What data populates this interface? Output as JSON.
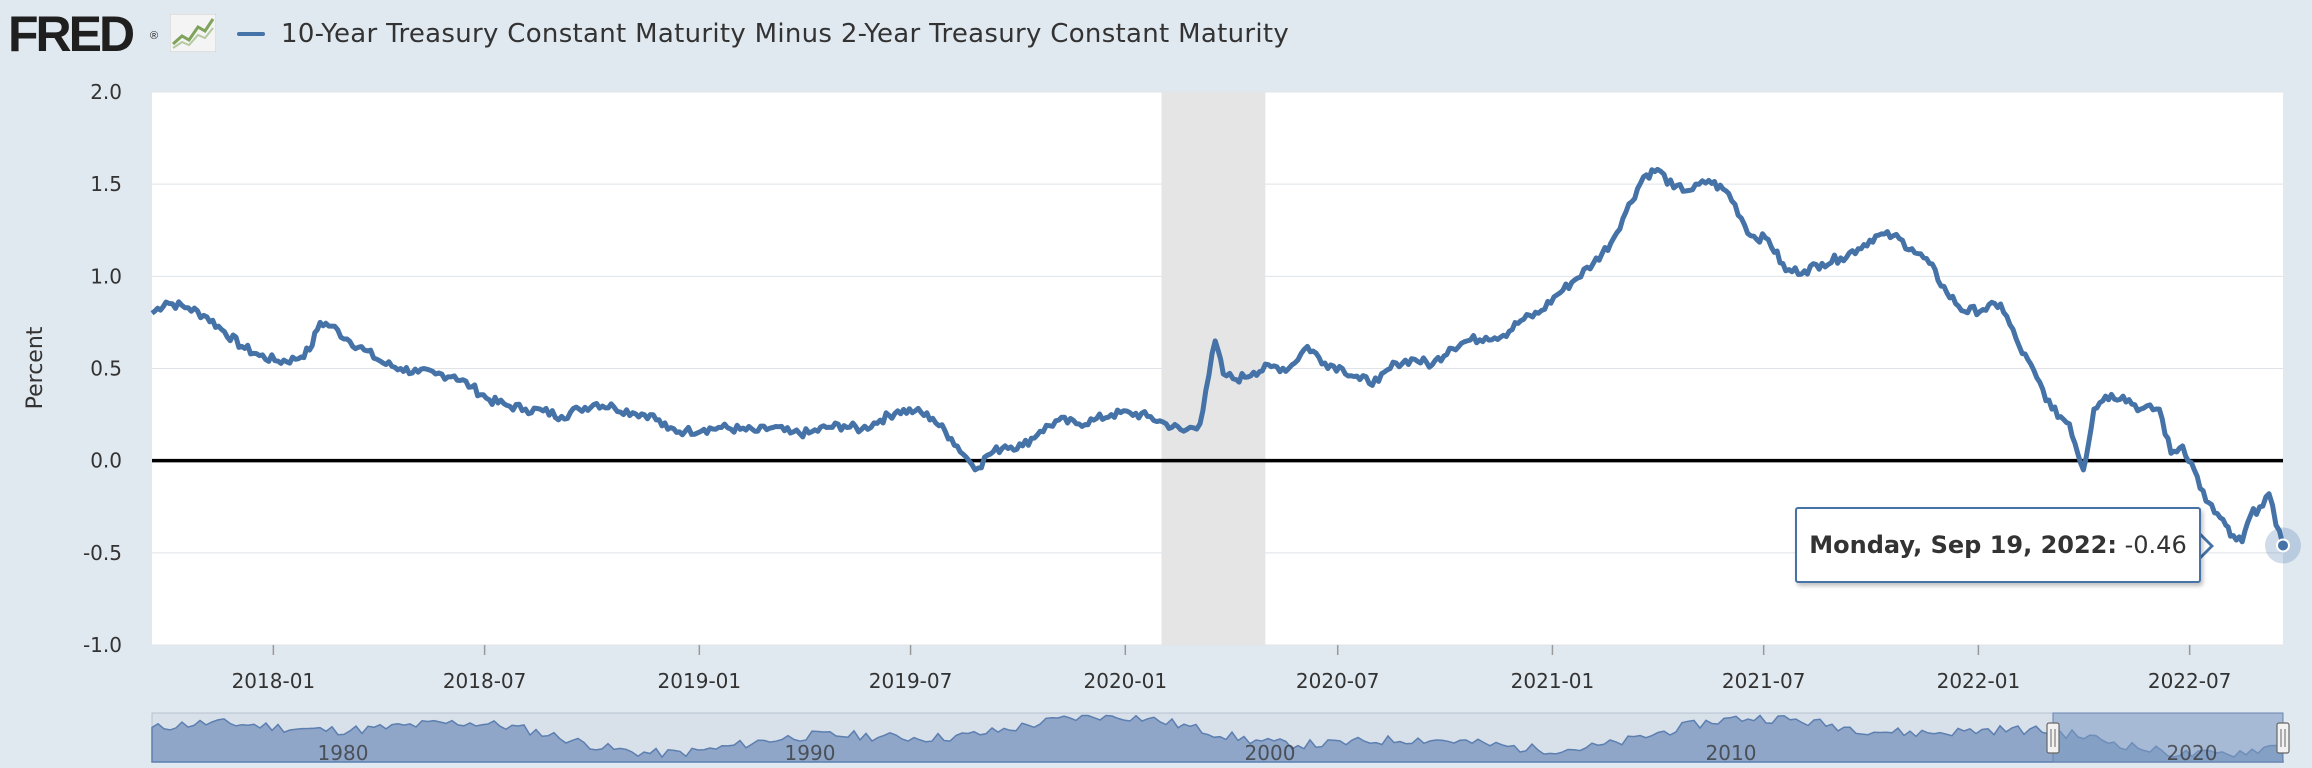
{
  "header": {
    "logo": "FRED",
    "logo_mark": "®",
    "series_title": "10-Year Treasury Constant Maturity Minus 2-Year Treasury Constant Maturity"
  },
  "tooltip": {
    "date": "Monday, Sep 19, 2022:",
    "value": "-0.46"
  },
  "navigator": {
    "year_labels": [
      "1980",
      "1990",
      "2000",
      "2010",
      "2020"
    ]
  },
  "colors": {
    "series": "#4572a7",
    "recession": "#e5e5e5",
    "background": "#e1e9f0",
    "zero_line": "#000000"
  },
  "chart_data": {
    "type": "line",
    "title": "",
    "ylabel": "Percent",
    "xlabel": "",
    "ylim": [
      -1.0,
      2.0
    ],
    "xlim": [
      "2017-09-19",
      "2022-09-19"
    ],
    "y_ticks": [
      "2.0",
      "1.5",
      "1.0",
      "0.5",
      "0.0",
      "-0.5",
      "-1.0"
    ],
    "x_ticks": [
      "2018-01",
      "2018-07",
      "2019-01",
      "2019-07",
      "2020-01",
      "2020-07",
      "2021-01",
      "2021-07",
      "2022-01",
      "2022-07"
    ],
    "grid": true,
    "legend": "top-left",
    "recession": {
      "start": "2020-02-01",
      "end": "2020-04-30"
    },
    "series": [
      {
        "name": "10-Year Treasury Constant Maturity Minus 2-Year Treasury Constant Maturity",
        "points": [
          [
            "2017-09-19",
            0.8
          ],
          [
            "2017-10-01",
            0.86
          ],
          [
            "2017-10-20",
            0.83
          ],
          [
            "2017-11-05",
            0.78
          ],
          [
            "2017-11-20",
            0.7
          ],
          [
            "2017-12-05",
            0.62
          ],
          [
            "2017-12-20",
            0.57
          ],
          [
            "2018-01-05",
            0.54
          ],
          [
            "2018-01-20",
            0.55
          ],
          [
            "2018-02-01",
            0.6
          ],
          [
            "2018-02-10",
            0.75
          ],
          [
            "2018-02-20",
            0.73
          ],
          [
            "2018-03-05",
            0.66
          ],
          [
            "2018-03-20",
            0.6
          ],
          [
            "2018-04-05",
            0.53
          ],
          [
            "2018-04-20",
            0.5
          ],
          [
            "2018-05-05",
            0.48
          ],
          [
            "2018-05-20",
            0.47
          ],
          [
            "2018-06-05",
            0.46
          ],
          [
            "2018-06-20",
            0.4
          ],
          [
            "2018-07-05",
            0.33
          ],
          [
            "2018-07-20",
            0.3
          ],
          [
            "2018-08-05",
            0.28
          ],
          [
            "2018-08-20",
            0.27
          ],
          [
            "2018-09-05",
            0.24
          ],
          [
            "2018-09-20",
            0.28
          ],
          [
            "2018-10-05",
            0.31
          ],
          [
            "2018-10-20",
            0.29
          ],
          [
            "2018-11-05",
            0.26
          ],
          [
            "2018-11-20",
            0.25
          ],
          [
            "2018-12-05",
            0.17
          ],
          [
            "2018-12-20",
            0.16
          ],
          [
            "2019-01-05",
            0.17
          ],
          [
            "2019-01-20",
            0.18
          ],
          [
            "2019-02-05",
            0.17
          ],
          [
            "2019-02-20",
            0.16
          ],
          [
            "2019-03-05",
            0.18
          ],
          [
            "2019-03-20",
            0.15
          ],
          [
            "2019-04-05",
            0.15
          ],
          [
            "2019-04-20",
            0.18
          ],
          [
            "2019-05-05",
            0.19
          ],
          [
            "2019-05-20",
            0.17
          ],
          [
            "2019-06-05",
            0.22
          ],
          [
            "2019-06-20",
            0.27
          ],
          [
            "2019-07-05",
            0.27
          ],
          [
            "2019-07-20",
            0.23
          ],
          [
            "2019-08-05",
            0.12
          ],
          [
            "2019-08-20",
            0.0
          ],
          [
            "2019-08-28",
            -0.04
          ],
          [
            "2019-09-05",
            0.03
          ],
          [
            "2019-09-20",
            0.08
          ],
          [
            "2019-10-05",
            0.08
          ],
          [
            "2019-10-20",
            0.16
          ],
          [
            "2019-11-05",
            0.22
          ],
          [
            "2019-11-20",
            0.2
          ],
          [
            "2019-12-05",
            0.22
          ],
          [
            "2019-12-20",
            0.25
          ],
          [
            "2020-01-05",
            0.26
          ],
          [
            "2020-01-20",
            0.24
          ],
          [
            "2020-02-05",
            0.2
          ],
          [
            "2020-02-20",
            0.16
          ],
          [
            "2020-03-05",
            0.2
          ],
          [
            "2020-03-10",
            0.38
          ],
          [
            "2020-03-18",
            0.65
          ],
          [
            "2020-03-25",
            0.47
          ],
          [
            "2020-04-05",
            0.44
          ],
          [
            "2020-04-20",
            0.48
          ],
          [
            "2020-05-05",
            0.51
          ],
          [
            "2020-05-20",
            0.5
          ],
          [
            "2020-06-05",
            0.62
          ],
          [
            "2020-06-20",
            0.53
          ],
          [
            "2020-07-05",
            0.5
          ],
          [
            "2020-07-20",
            0.44
          ],
          [
            "2020-08-05",
            0.43
          ],
          [
            "2020-08-20",
            0.53
          ],
          [
            "2020-09-05",
            0.55
          ],
          [
            "2020-09-20",
            0.52
          ],
          [
            "2020-10-05",
            0.61
          ],
          [
            "2020-10-20",
            0.65
          ],
          [
            "2020-11-05",
            0.67
          ],
          [
            "2020-11-20",
            0.68
          ],
          [
            "2020-12-05",
            0.76
          ],
          [
            "2020-12-20",
            0.8
          ],
          [
            "2021-01-05",
            0.9
          ],
          [
            "2021-01-20",
            0.98
          ],
          [
            "2021-02-05",
            1.07
          ],
          [
            "2021-02-20",
            1.18
          ],
          [
            "2021-03-05",
            1.35
          ],
          [
            "2021-03-20",
            1.54
          ],
          [
            "2021-04-01",
            1.58
          ],
          [
            "2021-04-15",
            1.48
          ],
          [
            "2021-05-01",
            1.47
          ],
          [
            "2021-05-15",
            1.52
          ],
          [
            "2021-06-01",
            1.45
          ],
          [
            "2021-06-20",
            1.22
          ],
          [
            "2021-07-05",
            1.2
          ],
          [
            "2021-07-20",
            1.03
          ],
          [
            "2021-08-05",
            1.03
          ],
          [
            "2021-08-20",
            1.07
          ],
          [
            "2021-09-05",
            1.1
          ],
          [
            "2021-09-20",
            1.15
          ],
          [
            "2021-10-05",
            1.22
          ],
          [
            "2021-10-20",
            1.22
          ],
          [
            "2021-11-05",
            1.15
          ],
          [
            "2021-11-20",
            1.07
          ],
          [
            "2021-12-05",
            0.91
          ],
          [
            "2021-12-20",
            0.81
          ],
          [
            "2022-01-05",
            0.82
          ],
          [
            "2022-01-20",
            0.85
          ],
          [
            "2022-02-05",
            0.62
          ],
          [
            "2022-02-20",
            0.45
          ],
          [
            "2022-03-05",
            0.28
          ],
          [
            "2022-03-20",
            0.2
          ],
          [
            "2022-04-01",
            -0.05
          ],
          [
            "2022-04-10",
            0.28
          ],
          [
            "2022-04-20",
            0.35
          ],
          [
            "2022-05-05",
            0.35
          ],
          [
            "2022-05-20",
            0.28
          ],
          [
            "2022-06-05",
            0.28
          ],
          [
            "2022-06-15",
            0.04
          ],
          [
            "2022-06-25",
            0.08
          ],
          [
            "2022-07-05",
            -0.05
          ],
          [
            "2022-07-15",
            -0.22
          ],
          [
            "2022-08-01",
            -0.35
          ],
          [
            "2022-08-05",
            -0.41
          ],
          [
            "2022-08-15",
            -0.44
          ],
          [
            "2022-08-22",
            -0.3
          ],
          [
            "2022-08-30",
            -0.25
          ],
          [
            "2022-09-07",
            -0.18
          ],
          [
            "2022-09-13",
            -0.35
          ],
          [
            "2022-09-19",
            -0.46
          ]
        ]
      }
    ]
  }
}
